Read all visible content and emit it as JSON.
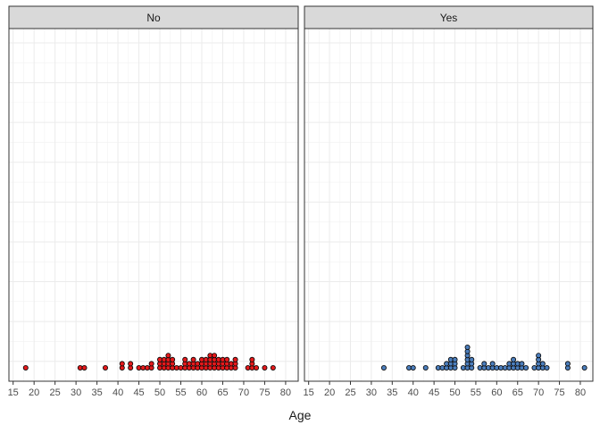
{
  "chart_data": {
    "type": "dotplot",
    "title": "",
    "xlabel": "Age",
    "ylabel": "",
    "xlim": [
      14,
      83
    ],
    "x_ticks": [
      15,
      20,
      25,
      30,
      35,
      40,
      45,
      50,
      55,
      60,
      65,
      70,
      75,
      80
    ],
    "grid": true,
    "facets": [
      {
        "label": "No",
        "color": "#e41a1c",
        "x": [
          18,
          31,
          32,
          37,
          41,
          41,
          43,
          43,
          45,
          46,
          47,
          48,
          48,
          50,
          50,
          50,
          51,
          51,
          51,
          52,
          52,
          52,
          52,
          53,
          53,
          53,
          54,
          55,
          56,
          56,
          56,
          57,
          57,
          58,
          58,
          58,
          59,
          59,
          60,
          60,
          60,
          61,
          61,
          61,
          62,
          62,
          62,
          62,
          63,
          63,
          63,
          63,
          64,
          64,
          64,
          65,
          65,
          65,
          66,
          66,
          66,
          67,
          67,
          68,
          68,
          68,
          71,
          72,
          72,
          72,
          73,
          75,
          77
        ]
      },
      {
        "label": "Yes",
        "color": "#4c7ebc",
        "x": [
          33,
          39,
          40,
          43,
          46,
          47,
          48,
          48,
          49,
          49,
          49,
          50,
          50,
          50,
          52,
          53,
          53,
          53,
          53,
          53,
          53,
          54,
          54,
          54,
          56,
          57,
          57,
          58,
          59,
          59,
          60,
          61,
          62,
          63,
          63,
          64,
          64,
          64,
          65,
          65,
          66,
          66,
          67,
          69,
          70,
          70,
          70,
          70,
          71,
          71,
          72,
          77,
          77,
          81
        ]
      }
    ]
  }
}
